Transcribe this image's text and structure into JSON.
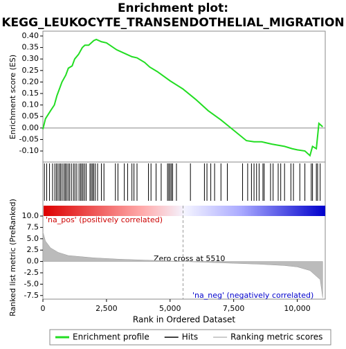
{
  "chart_data": [
    {
      "type": "line",
      "title": "Enrichment plot:",
      "subtitle": "KEGG_LEUKOCYTE_TRANSENDOTHELIAL_MIGRATION",
      "ylabel": "Enrichment score (ES)",
      "x": [
        0,
        100,
        300,
        450,
        550,
        650,
        750,
        900,
        1000,
        1150,
        1250,
        1400,
        1550,
        1650,
        1800,
        2000,
        2100,
        2300,
        2500,
        2900,
        3000,
        3300,
        3500,
        3700,
        4000,
        4200,
        4500,
        5000,
        5500,
        6000,
        6500,
        7000,
        7500,
        8000,
        8300,
        8600,
        9000,
        9500,
        9800,
        10000,
        10300,
        10500,
        10600,
        10750,
        10850,
        11000
      ],
      "series": [
        {
          "name": "Enrichment profile",
          "color": "#22dd22",
          "values": [
            -0.005,
            0.04,
            0.075,
            0.1,
            0.14,
            0.17,
            0.2,
            0.23,
            0.26,
            0.27,
            0.3,
            0.32,
            0.35,
            0.36,
            0.36,
            0.38,
            0.385,
            0.375,
            0.37,
            0.34,
            0.335,
            0.32,
            0.31,
            0.305,
            0.285,
            0.265,
            0.245,
            0.205,
            0.17,
            0.125,
            0.075,
            0.035,
            -0.01,
            -0.055,
            -0.06,
            -0.06,
            -0.07,
            -0.08,
            -0.09,
            -0.095,
            -0.1,
            -0.12,
            -0.08,
            -0.09,
            0.02,
            0.005
          ]
        }
      ],
      "xlim": [
        0,
        11100
      ],
      "ylim": [
        -0.145,
        0.421
      ],
      "yticks": [
        {
          "value": 0.4,
          "label": "0.40"
        },
        {
          "value": 0.35,
          "label": "0.35"
        },
        {
          "value": 0.3,
          "label": "0.30"
        },
        {
          "value": 0.25,
          "label": "0.25"
        },
        {
          "value": 0.2,
          "label": "0.20"
        },
        {
          "value": 0.15,
          "label": "0.15"
        },
        {
          "value": 0.1,
          "label": "0.10"
        },
        {
          "value": 0.05,
          "label": "0.05"
        },
        {
          "value": 0,
          "label": "0.00"
        },
        {
          "value": -0.05,
          "label": "-0.05"
        },
        {
          "value": -0.1,
          "label": "-0.10"
        }
      ]
    },
    {
      "type": "hits",
      "series": [
        {
          "name": "Hits",
          "color": "#000000",
          "x": [
            60,
            150,
            260,
            380,
            470,
            530,
            590,
            650,
            700,
            760,
            830,
            880,
            930,
            990,
            1050,
            1120,
            1200,
            1260,
            1330,
            1420,
            1480,
            1530,
            1580,
            1640,
            1700,
            1850,
            1900,
            1950,
            2000,
            2060,
            2150,
            2300,
            2400,
            2850,
            2950,
            3200,
            3330,
            3500,
            3580,
            3700,
            4150,
            4250,
            4450,
            4650,
            4900,
            4950,
            5000,
            5050,
            5100,
            5250,
            5800,
            6350,
            6450,
            6600,
            6750,
            7000,
            7250,
            7850,
            8050,
            8200,
            8300,
            8400,
            8500,
            8650,
            8700,
            8950,
            9050,
            9250,
            9350,
            9500,
            9750,
            9850,
            10100,
            10300,
            10550,
            10600,
            10750,
            10800,
            10900
          ]
        }
      ],
      "xlim": [
        0,
        11100
      ]
    },
    {
      "type": "area",
      "xlabel": "Rank in Ordered Dataset",
      "ylabel": "Ranked list metric (PreRanked)",
      "x": [
        0,
        100,
        300,
        600,
        1000,
        2000,
        3000,
        4000,
        5000,
        5510,
        6500,
        7500,
        8500,
        9500,
        10000,
        10500,
        10700,
        10900,
        11000
      ],
      "series": [
        {
          "name": "Ranking metric scores",
          "color": "#bbbbbb",
          "values": [
            6.5,
            4.5,
            3,
            2,
            1.3,
            0.8,
            0.5,
            0.3,
            0.1,
            0,
            -0.2,
            -0.4,
            -0.6,
            -0.9,
            -1.2,
            -2,
            -3,
            -4,
            -8
          ]
        }
      ],
      "xlim": [
        0,
        11100
      ],
      "ylim": [
        -8.3,
        10
      ],
      "xticks": [
        0,
        {
          "value": 2500,
          "label": "2,500"
        },
        {
          "value": 5000,
          "label": "5,000"
        },
        {
          "value": 7500,
          "label": "7,500"
        },
        {
          "value": 10000,
          "label": "10,000"
        }
      ],
      "yticks": [
        {
          "value": 10,
          "label": "10.0"
        },
        {
          "value": 7.5,
          "label": "7.5"
        },
        {
          "value": 5,
          "label": "5.0"
        },
        {
          "value": 2.5,
          "label": "2.5"
        },
        {
          "value": 0,
          "label": "0.0"
        },
        {
          "value": -2.5,
          "label": "-2.5"
        },
        {
          "value": -5,
          "label": "-5.0"
        },
        {
          "value": -7.5,
          "label": "-7.5"
        }
      ],
      "zero_cross": 5510,
      "pos_label": "'na_pos' (positively correlated)",
      "neg_label": "'na_neg' (negatively correlated)",
      "zero_label": "Zero cross at 5510"
    }
  ]
}
